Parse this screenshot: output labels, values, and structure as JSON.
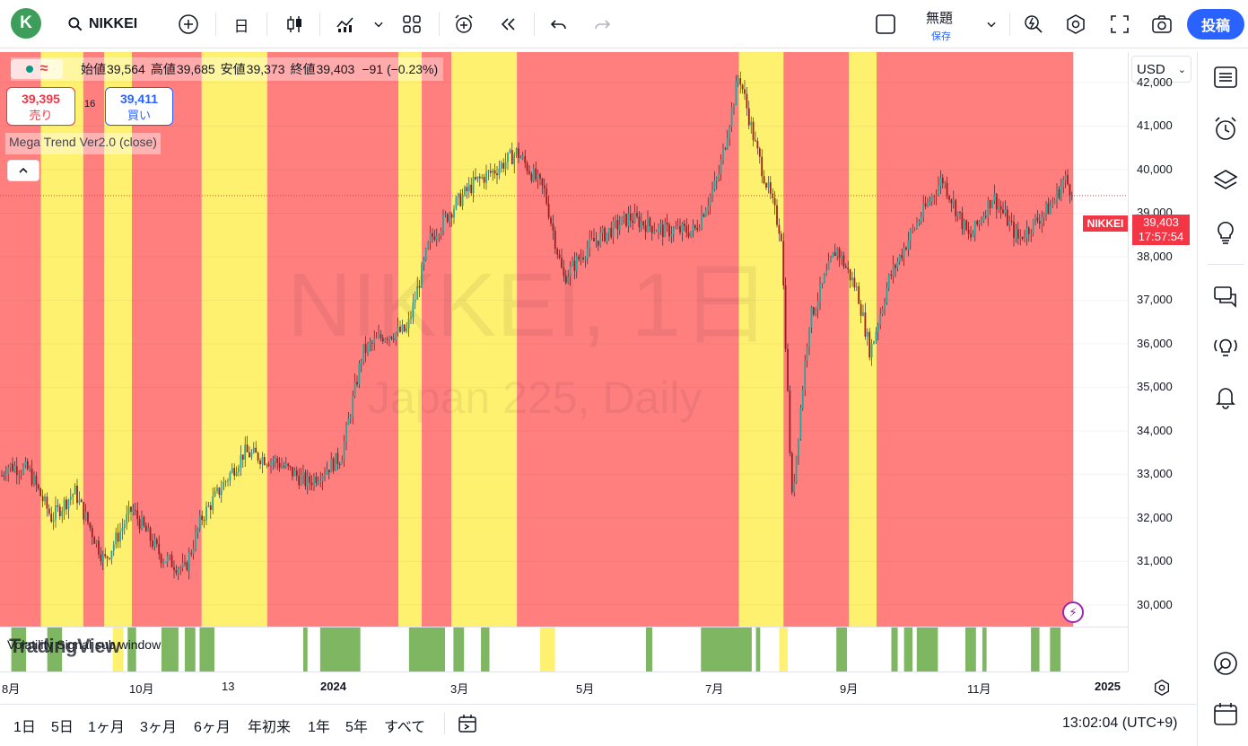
{
  "topbar": {
    "avatar_letter": "K",
    "symbol": "NIKKEI",
    "interval": "日",
    "layout_title": "無題",
    "layout_save": "保存",
    "publish": "投稿"
  },
  "legend": {
    "open_label": "始値",
    "open": "39,564",
    "high_label": "高値",
    "high": "39,685",
    "low_label": "安値",
    "low": "39,373",
    "close_label": "終値",
    "close": "39,403",
    "change": "−91 (−0.23%)",
    "approx_symbol": "≈"
  },
  "trade": {
    "sell_price": "39,395",
    "sell_label": "売り",
    "buy_price": "39,411",
    "buy_label": "買い",
    "spread": "16"
  },
  "indicator": {
    "name": "Mega Trend Ver2.0 (close)"
  },
  "watermark": {
    "symbol": "NIKKEI, 1日",
    "description": "Japan 225, Daily"
  },
  "subpane": {
    "title": "Volatility Signal sub window",
    "logo": "TradingView"
  },
  "price_scale": {
    "currency": "USD",
    "ticks": [
      "42,000",
      "41,000",
      "40,000",
      "39,000",
      "38,000",
      "37,000",
      "36,000",
      "35,000",
      "34,000",
      "33,000",
      "32,000",
      "31,000",
      "30,000"
    ],
    "last_price": "39,403",
    "countdown": "17:57:54",
    "symbol_tag": "NIKKEI"
  },
  "time_axis": {
    "labels": [
      {
        "text": "8月",
        "bold": false
      },
      {
        "text": "10月",
        "bold": false
      },
      {
        "text": "13",
        "bold": false
      },
      {
        "text": "2024",
        "bold": true
      },
      {
        "text": "3月",
        "bold": false
      },
      {
        "text": "5月",
        "bold": false
      },
      {
        "text": "7月",
        "bold": false
      },
      {
        "text": "9月",
        "bold": false
      },
      {
        "text": "11月",
        "bold": false
      },
      {
        "text": "2025",
        "bold": true
      }
    ]
  },
  "bottombar": {
    "ranges": [
      "1日",
      "5日",
      "1ヶ月",
      "3ヶ月",
      "6ヶ月",
      "年初来",
      "1年",
      "5年",
      "すべて"
    ],
    "clock": "13:02:04 (UTC+9)"
  },
  "colors": {
    "bull": "#26a69a",
    "bear": "#9c1f1f",
    "trend_up": "#fff170",
    "trend_down": "#ff7f7f",
    "signal": "#7fb661",
    "signal_alt": "#fff170",
    "accent": "#2962ff",
    "last_price": "#f23645"
  },
  "chart_data": {
    "type": "candlestick",
    "symbol": "NIKKEI",
    "interval": "1D",
    "ylim": [
      29500,
      42700
    ],
    "last_close": 39403,
    "trend_regimes": [
      {
        "start": "2023-06-19",
        "end": "2023-07-27",
        "state": "up"
      },
      {
        "start": "2023-07-27",
        "end": "2023-08-16",
        "state": "down"
      },
      {
        "start": "2023-08-16",
        "end": "2023-09-05",
        "state": "up"
      },
      {
        "start": "2023-09-05",
        "end": "2023-09-15",
        "state": "down"
      },
      {
        "start": "2023-09-15",
        "end": "2023-09-28",
        "state": "up"
      },
      {
        "start": "2023-09-28",
        "end": "2023-10-31",
        "state": "down"
      },
      {
        "start": "2023-10-31",
        "end": "2023-12-01",
        "state": "up"
      },
      {
        "start": "2023-12-01",
        "end": "2024-02-01",
        "state": "down"
      },
      {
        "start": "2024-02-01",
        "end": "2024-02-12",
        "state": "up"
      },
      {
        "start": "2024-02-12",
        "end": "2024-02-26",
        "state": "down"
      },
      {
        "start": "2024-02-26",
        "end": "2024-03-28",
        "state": "up"
      },
      {
        "start": "2024-03-28",
        "end": "2024-07-11",
        "state": "down"
      },
      {
        "start": "2024-07-11",
        "end": "2024-08-01",
        "state": "up"
      },
      {
        "start": "2024-08-01",
        "end": "2024-09-01",
        "state": "down"
      },
      {
        "start": "2024-09-01",
        "end": "2024-09-14",
        "state": "up"
      },
      {
        "start": "2024-09-14",
        "end": "2024-12-16",
        "state": "down"
      }
    ],
    "volatility_signal": [
      {
        "start": "2023-06-24",
        "end": "2023-06-30"
      },
      {
        "start": "2023-07-01",
        "end": "2023-07-10"
      },
      {
        "start": "2023-08-02",
        "end": "2023-08-09"
      },
      {
        "start": "2023-08-19",
        "end": "2023-08-26"
      },
      {
        "start": "2023-09-26",
        "end": "2023-09-30"
      },
      {
        "start": "2023-10-12",
        "end": "2023-10-20"
      },
      {
        "start": "2023-10-23",
        "end": "2023-10-28"
      },
      {
        "start": "2023-10-30",
        "end": "2023-11-06"
      },
      {
        "start": "2023-12-18",
        "end": "2023-12-20"
      },
      {
        "start": "2023-12-26",
        "end": "2024-01-14"
      },
      {
        "start": "2024-02-06",
        "end": "2024-02-23"
      },
      {
        "start": "2024-02-27",
        "end": "2024-03-03"
      },
      {
        "start": "2024-03-11",
        "end": "2024-03-15"
      },
      {
        "start": "2024-05-28",
        "end": "2024-05-31"
      },
      {
        "start": "2024-06-23",
        "end": "2024-07-17"
      },
      {
        "start": "2024-07-19",
        "end": "2024-07-21"
      },
      {
        "start": "2024-08-26",
        "end": "2024-08-31"
      },
      {
        "start": "2024-09-21",
        "end": "2024-09-24"
      },
      {
        "start": "2024-09-27",
        "end": "2024-10-01"
      },
      {
        "start": "2024-10-03",
        "end": "2024-10-13"
      },
      {
        "start": "2024-10-26",
        "end": "2024-10-31"
      },
      {
        "start": "2024-11-03",
        "end": "2024-11-05"
      },
      {
        "start": "2024-11-26",
        "end": "2024-11-30"
      },
      {
        "start": "2024-12-05",
        "end": "2024-12-10"
      }
    ],
    "volatility_signal_alt": [
      {
        "start": "2023-09-19",
        "end": "2023-09-24"
      },
      {
        "start": "2024-04-08",
        "end": "2024-04-15"
      },
      {
        "start": "2024-07-30",
        "end": "2024-08-03"
      }
    ],
    "price_path": [
      {
        "date": "2023-06-19",
        "close": 32800
      },
      {
        "date": "2023-06-30",
        "close": 32400
      },
      {
        "date": "2023-07-10",
        "close": 31900
      },
      {
        "date": "2023-07-20",
        "close": 32200
      },
      {
        "date": "2023-07-31",
        "close": 33200
      },
      {
        "date": "2023-08-10",
        "close": 33100
      },
      {
        "date": "2023-08-21",
        "close": 32000
      },
      {
        "date": "2023-09-01",
        "close": 32600
      },
      {
        "date": "2023-09-15",
        "close": 31000
      },
      {
        "date": "2023-09-28",
        "close": 32200
      },
      {
        "date": "2023-10-12",
        "close": 31100
      },
      {
        "date": "2023-10-23",
        "close": 30800
      },
      {
        "date": "2023-10-31",
        "close": 32000
      },
      {
        "date": "2023-11-20",
        "close": 33500
      },
      {
        "date": "2023-12-05",
        "close": 33300
      },
      {
        "date": "2023-12-20",
        "close": 32800
      },
      {
        "date": "2024-01-05",
        "close": 33400
      },
      {
        "date": "2024-01-15",
        "close": 35800
      },
      {
        "date": "2024-01-25",
        "close": 36200
      },
      {
        "date": "2024-02-05",
        "close": 36300
      },
      {
        "date": "2024-02-16",
        "close": 38400
      },
      {
        "date": "2024-02-28",
        "close": 39200
      },
      {
        "date": "2024-03-08",
        "close": 39700
      },
      {
        "date": "2024-03-18",
        "close": 40000
      },
      {
        "date": "2024-03-28",
        "close": 40400
      },
      {
        "date": "2024-04-10",
        "close": 39500
      },
      {
        "date": "2024-04-19",
        "close": 37500
      },
      {
        "date": "2024-05-02",
        "close": 38300
      },
      {
        "date": "2024-05-20",
        "close": 38900
      },
      {
        "date": "2024-06-05",
        "close": 38600
      },
      {
        "date": "2024-06-20",
        "close": 38600
      },
      {
        "date": "2024-07-01",
        "close": 39800
      },
      {
        "date": "2024-07-11",
        "close": 42200
      },
      {
        "date": "2024-07-19",
        "close": 40500
      },
      {
        "date": "2024-07-31",
        "close": 38500
      },
      {
        "date": "2024-08-05",
        "close": 32400
      },
      {
        "date": "2024-08-13",
        "close": 36500
      },
      {
        "date": "2024-08-26",
        "close": 38200
      },
      {
        "date": "2024-09-05",
        "close": 37200
      },
      {
        "date": "2024-09-11",
        "close": 35800
      },
      {
        "date": "2024-09-20",
        "close": 37500
      },
      {
        "date": "2024-09-30",
        "close": 38500
      },
      {
        "date": "2024-10-15",
        "close": 39800
      },
      {
        "date": "2024-10-28",
        "close": 38400
      },
      {
        "date": "2024-11-08",
        "close": 39400
      },
      {
        "date": "2024-11-20",
        "close": 38400
      },
      {
        "date": "2024-12-06",
        "close": 39200
      },
      {
        "date": "2024-12-12",
        "close": 39800
      },
      {
        "date": "2024-12-16",
        "close": 39403
      }
    ]
  }
}
